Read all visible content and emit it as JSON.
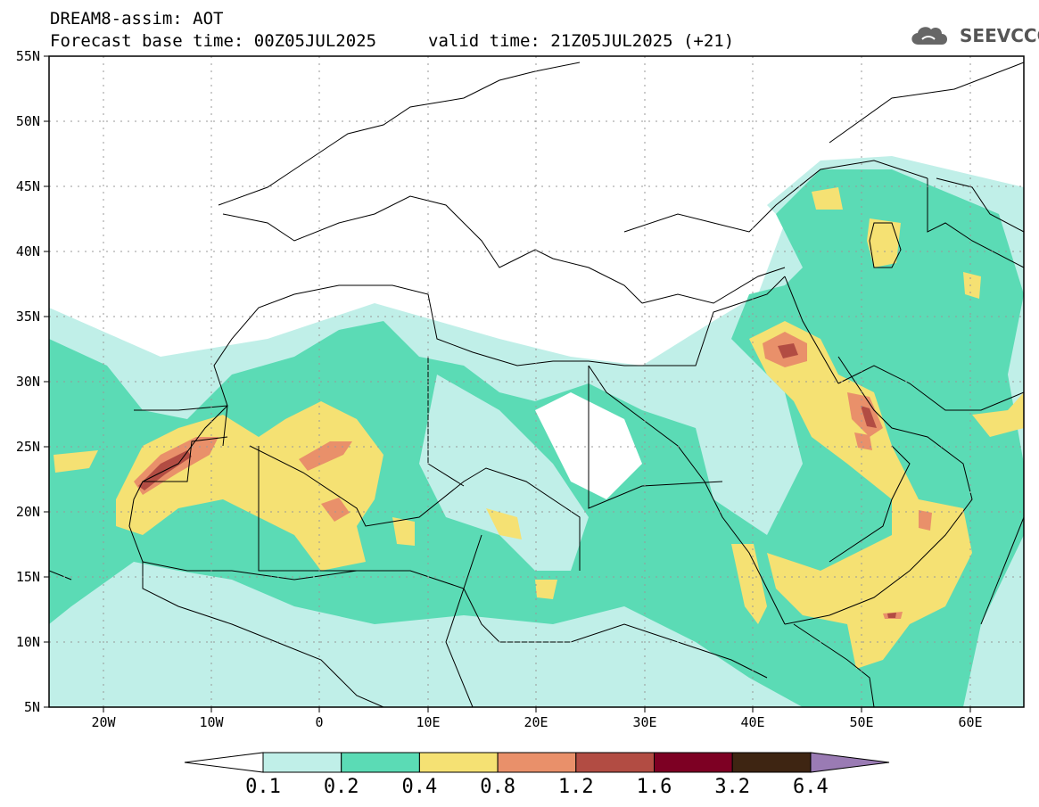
{
  "header": {
    "line1": "DREAM8-assim: AOT",
    "line2": "Forecast base time: 00Z05JUL2025",
    "line3": "valid time: 21Z05JUL2025 (+21)"
  },
  "logo": {
    "text": "SEEVCCC",
    "icon": "cloud-logo-icon"
  },
  "map": {
    "lon_range": [
      -25,
      65
    ],
    "lat_range": [
      5,
      55
    ],
    "lat_ticks": [
      "5N",
      "10N",
      "15N",
      "20N",
      "25N",
      "30N",
      "35N",
      "40N",
      "45N",
      "50N",
      "55N"
    ],
    "lon_ticks": [
      "20W",
      "10W",
      "0",
      "10E",
      "20E",
      "30E",
      "40E",
      "50E",
      "60E"
    ],
    "grid": "dotted"
  },
  "colorbar": {
    "labels": [
      "0.1",
      "0.2",
      "0.4",
      "0.8",
      "1.2",
      "1.6",
      "3.2",
      "6.4"
    ],
    "colors": [
      "#c0efe8",
      "#5bdbb5",
      "#f5e173",
      "#e9906a",
      "#b24c43",
      "#7d0023",
      "#3e2512",
      "#9a7bb4"
    ]
  }
}
